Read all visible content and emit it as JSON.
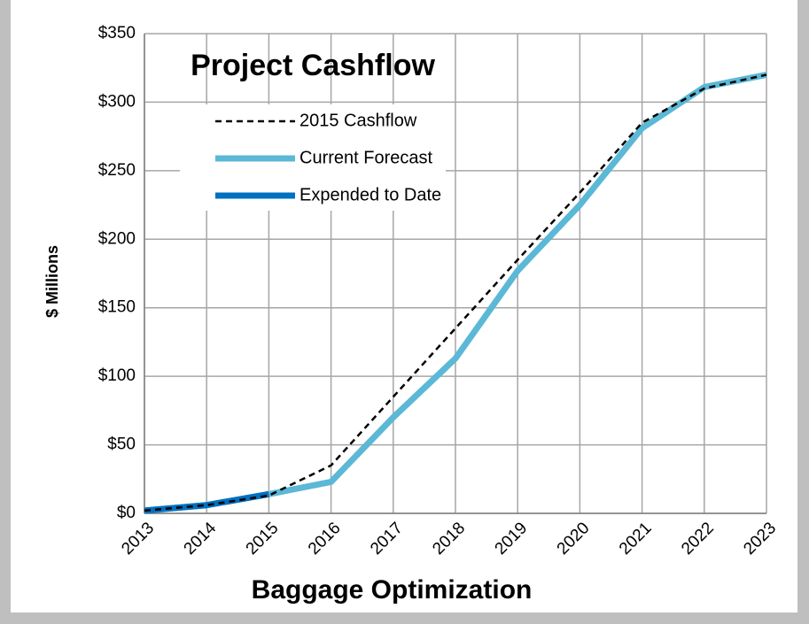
{
  "chart_data": {
    "type": "line",
    "title": "Project Cashflow",
    "ylabel": "$ Millions",
    "xlabel": "Baggage Optimization",
    "categories": [
      "2013",
      "2014",
      "2015",
      "2016",
      "2017",
      "2018",
      "2019",
      "2020",
      "2021",
      "2022",
      "2023"
    ],
    "series": [
      {
        "name": "2015 Cashflow",
        "color": "#000000",
        "dashed": true,
        "values": [
          2,
          6,
          13,
          35,
          85,
          135,
          185,
          234,
          285,
          310,
          320
        ]
      },
      {
        "name": "Current Forecast",
        "color": "#5bb8d6",
        "values": [
          2,
          6,
          14,
          23,
          70,
          113,
          177,
          225,
          281,
          311,
          320
        ]
      },
      {
        "name": "Expended to Date",
        "color": "#0070c0",
        "values": [
          2,
          6,
          14,
          null,
          null,
          null,
          null,
          null,
          null,
          null,
          null
        ]
      }
    ],
    "ylim": [
      0,
      350
    ],
    "yticks": [
      {
        "value": 0,
        "label": "$0"
      },
      {
        "value": 50,
        "label": "$50"
      },
      {
        "value": 100,
        "label": "$100"
      },
      {
        "value": 150,
        "label": "$150"
      },
      {
        "value": 200,
        "label": "$200"
      },
      {
        "value": 250,
        "label": "$250"
      },
      {
        "value": 300,
        "label": "$300"
      },
      {
        "value": 350,
        "label": "$350"
      }
    ],
    "grid": true,
    "legend": "upper left"
  }
}
